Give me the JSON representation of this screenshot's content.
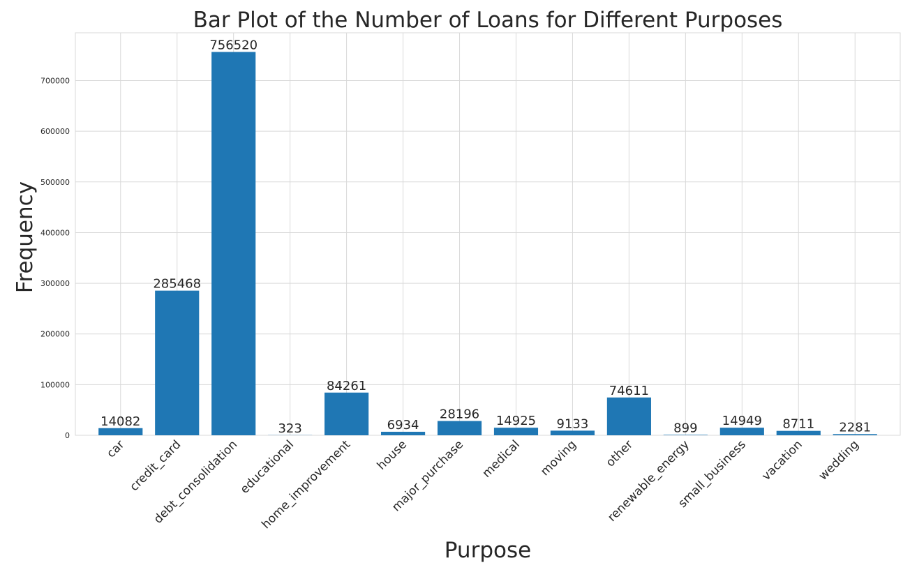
{
  "chart_data": {
    "type": "bar",
    "title": "Bar Plot of the Number of Loans for Different Purposes",
    "xlabel": "Purpose",
    "ylabel": "Frequency",
    "categories": [
      "car",
      "credit_card",
      "debt_consolidation",
      "educational",
      "home_improvement",
      "house",
      "major_purchase",
      "medical",
      "moving",
      "other",
      "renewable_energy",
      "small_business",
      "vacation",
      "wedding"
    ],
    "values": [
      14082,
      285468,
      756520,
      323,
      84261,
      6934,
      28196,
      14925,
      9133,
      74611,
      899,
      14949,
      8711,
      2281
    ],
    "data_labels": [
      "14082",
      "285468",
      "756520",
      "323",
      "84261",
      "6934",
      "28196",
      "14925",
      "9133",
      "74611",
      "899",
      "14949",
      "8711",
      "2281"
    ],
    "yticks": [
      0,
      100000,
      200000,
      300000,
      400000,
      500000,
      600000,
      700000
    ],
    "ytick_labels": [
      "0",
      "100000",
      "200000",
      "300000",
      "400000",
      "500000",
      "600000",
      "700000"
    ],
    "ylim": [
      0,
      794346
    ],
    "grid": true,
    "bar_color": "#1f77b4",
    "grid_color": "#d9d9d9"
  }
}
